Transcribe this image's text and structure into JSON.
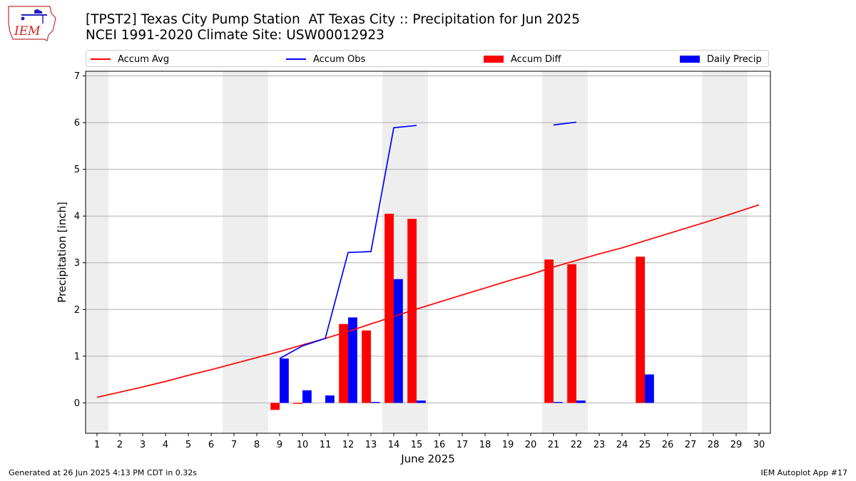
{
  "logo": {
    "text": "IEM"
  },
  "title": {
    "line1": "[TPST2] Texas City Pump Station  AT Texas City :: Precipitation for Jun 2025",
    "line2": "NCEI 1991-2020 Climate Site: USW00012923"
  },
  "colors": {
    "avg": "#ff0000",
    "obs": "#0000ff",
    "diff": "#ff0000",
    "daily": "#0000ff",
    "weekend": "#eeeeee",
    "grid": "#b0b0b0"
  },
  "legend": [
    {
      "label": "Accum Avg",
      "kind": "line",
      "color": "#ff0000"
    },
    {
      "label": "Accum Obs",
      "kind": "line",
      "color": "#0000ff"
    },
    {
      "label": "Accum Diff",
      "kind": "box",
      "color": "#ff0000"
    },
    {
      "label": "Daily Precip",
      "kind": "box",
      "color": "#0000ff"
    }
  ],
  "footer": {
    "left": "Generated at 26 Jun 2025 4:13 PM CDT in 0.32s",
    "right": "IEM Autoplot App #17"
  },
  "chart_data": {
    "type": "bar",
    "xlabel": "June 2025",
    "ylabel": "Precipitation [inch]",
    "xlim": [
      0.5,
      30.5
    ],
    "ylim": [
      -0.65,
      7.1
    ],
    "x_ticks": [
      1,
      2,
      3,
      4,
      5,
      6,
      7,
      8,
      9,
      10,
      11,
      12,
      13,
      14,
      15,
      16,
      17,
      18,
      19,
      20,
      21,
      22,
      23,
      24,
      25,
      26,
      27,
      28,
      29,
      30
    ],
    "y_ticks": [
      0,
      1,
      2,
      3,
      4,
      5,
      6,
      7
    ],
    "grid": "horizontal",
    "legend_position": "top",
    "weekend_spans": [
      [
        0.5,
        1.5
      ],
      [
        6.5,
        8.5
      ],
      [
        13.5,
        15.5
      ],
      [
        20.5,
        22.5
      ],
      [
        27.5,
        29.5
      ]
    ],
    "series": [
      {
        "name": "Accum Avg",
        "type": "line",
        "x": [
          1,
          2,
          3,
          4,
          5,
          6,
          7,
          8,
          9,
          10,
          11,
          12,
          13,
          14,
          15,
          16,
          17,
          18,
          19,
          20,
          21,
          22,
          23,
          24,
          25,
          26,
          27,
          28,
          29,
          30
        ],
        "values": [
          0.12,
          0.23,
          0.34,
          0.46,
          0.59,
          0.71,
          0.84,
          0.97,
          1.1,
          1.24,
          1.38,
          1.53,
          1.69,
          1.85,
          2.01,
          2.16,
          2.31,
          2.46,
          2.61,
          2.75,
          2.91,
          3.05,
          3.19,
          3.32,
          3.47,
          3.62,
          3.77,
          3.92,
          4.08,
          4.24
        ]
      },
      {
        "name": "Accum Obs",
        "type": "line",
        "segments": [
          {
            "x": [
              9,
              10,
              11,
              12,
              13,
              14,
              15
            ],
            "values": [
              0.95,
              1.22,
              1.38,
              3.22,
              3.24,
              5.89,
              5.94
            ]
          },
          {
            "x": [
              21,
              22
            ],
            "values": [
              5.95,
              6.01
            ]
          }
        ]
      },
      {
        "name": "Accum Diff",
        "type": "bar",
        "x": [
          9,
          10,
          12,
          13,
          14,
          15,
          21,
          22,
          25
        ],
        "values": [
          -0.15,
          -0.02,
          1.69,
          1.55,
          4.05,
          3.94,
          3.07,
          2.97,
          3.13
        ]
      },
      {
        "name": "Daily Precip",
        "type": "bar",
        "x": [
          9,
          10,
          11,
          12,
          13,
          14,
          15,
          21,
          22,
          25
        ],
        "values": [
          0.95,
          0.27,
          0.16,
          1.83,
          0.02,
          2.65,
          0.05,
          0.02,
          0.05,
          0.61
        ]
      }
    ]
  }
}
